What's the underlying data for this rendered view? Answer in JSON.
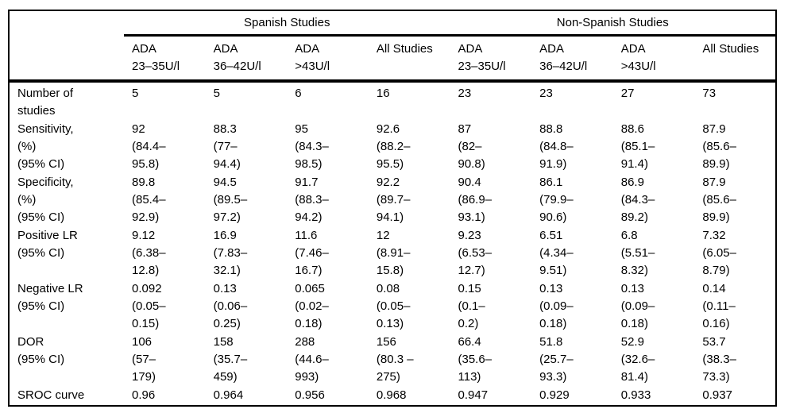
{
  "table": {
    "group_headers": [
      {
        "label": "Spanish Studies"
      },
      {
        "label": "Non-Spanish Studies"
      }
    ],
    "column_headers": [
      "ADA\n23–35U/l",
      "ADA\n36–42U/l",
      "ADA\n>43U/l",
      "All Studies",
      "ADA\n23–35U/l",
      "ADA\n36–42U/l",
      "ADA\n>43U/l",
      "All Studies"
    ],
    "rows": [
      {
        "label": "Number of\nstudies",
        "values": [
          "5",
          "5",
          "6",
          "16",
          "23",
          "23",
          "27",
          "73"
        ]
      },
      {
        "label": "Sensitivity,\n(%)\n(95% CI)",
        "values": [
          "92\n(84.4–\n95.8)",
          "88.3\n(77–\n94.4)",
          "95\n(84.3–\n98.5)",
          "92.6\n(88.2–\n95.5)",
          "87\n(82–\n90.8)",
          "88.8\n(84.8–\n91.9)",
          "88.6\n(85.1–\n91.4)",
          "87.9\n(85.6–\n89.9)"
        ]
      },
      {
        "label": "Specificity,\n(%)\n(95% CI)",
        "values": [
          "89.8\n(85.4–\n92.9)",
          "94.5\n(89.5–\n97.2)",
          "91.7\n(88.3–\n94.2)",
          "92.2\n(89.7–\n94.1)",
          "90.4\n(86.9–\n93.1)",
          "86.1\n(79.9–\n90.6)",
          "86.9\n(84.3–\n89.2)",
          "87.9\n(85.6–\n89.9)"
        ]
      },
      {
        "label": "Positive LR\n(95% CI)",
        "values": [
          "9.12\n(6.38–\n12.8)",
          "16.9\n(7.83–\n32.1)",
          "11.6\n(7.46–\n16.7)",
          "12\n(8.91–\n15.8)",
          "9.23\n(6.53–\n12.7)",
          "6.51\n(4.34–\n9.51)",
          "6.8\n(5.51–\n8.32)",
          "7.32\n(6.05–\n8.79)"
        ]
      },
      {
        "label": "Negative LR\n(95% CI)",
        "values": [
          "0.092\n(0.05–\n0.15)",
          "0.13\n(0.06–\n0.25)",
          "0.065\n(0.02–\n0.18)",
          "0.08\n(0.05–\n0.13)",
          "0.15\n(0.1–\n0.2)",
          "0.13\n(0.09–\n0.18)",
          "0.13\n(0.09–\n0.18)",
          "0.14\n(0.11–\n0.16)"
        ]
      },
      {
        "label": "DOR\n(95% CI)",
        "values": [
          "106\n(57–\n179)",
          "158\n(35.7–\n459)",
          "288\n(44.6–\n993)",
          "156\n(80.3 –\n275)",
          "66.4\n(35.6–\n113)",
          "51.8\n(25.7–\n93.3)",
          "52.9\n(32.6–\n81.4)",
          "53.7\n(38.3–\n73.3)"
        ]
      },
      {
        "label": "SROC curve",
        "values": [
          "0.96",
          "0.964",
          "0.956",
          "0.968",
          "0.947",
          "0.929",
          "0.933",
          "0.937"
        ]
      }
    ],
    "colors": {
      "text": "#000000",
      "border": "#000000",
      "background": "#ffffff"
    }
  }
}
